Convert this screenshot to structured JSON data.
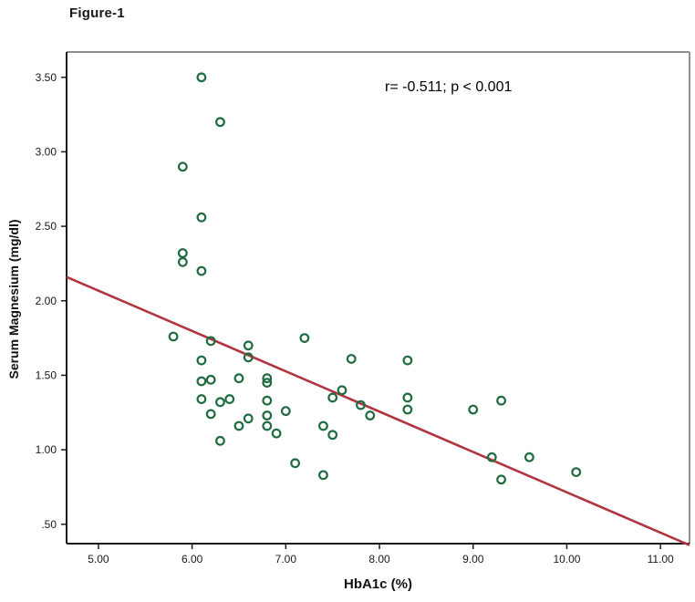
{
  "figure_label": "Figure-1",
  "annotation_text": "r= -0.511; p < 0.001",
  "chart_data": {
    "type": "scatter",
    "title": "Figure-1",
    "xlabel": "HbA1c (%)",
    "ylabel": "Serum Magnesium (mg/dl)",
    "xlim": [
      4.66,
      11.31
    ],
    "ylim": [
      0.37,
      3.67
    ],
    "grid": false,
    "x_ticks": [
      {
        "value": 5,
        "label": "5.00"
      },
      {
        "value": 6,
        "label": "6.00"
      },
      {
        "value": 7,
        "label": "7.00"
      },
      {
        "value": 8,
        "label": "8.00"
      },
      {
        "value": 9,
        "label": "9.00"
      },
      {
        "value": 10,
        "label": "10.00"
      },
      {
        "value": 11,
        "label": "11.00"
      }
    ],
    "y_ticks": [
      {
        "value": 3.5,
        "label": "3.50"
      },
      {
        "value": 3.0,
        "label": "3.00"
      },
      {
        "value": 2.5,
        "label": "2.50"
      },
      {
        "value": 2.0,
        "label": "2.00"
      },
      {
        "value": 1.5,
        "label": "1.50"
      },
      {
        "value": 1.0,
        "label": "1.00"
      },
      {
        "value": 0.5,
        "label": ".50"
      }
    ],
    "points": [
      [
        6.1,
        3.5
      ],
      [
        6.3,
        3.2
      ],
      [
        5.9,
        2.9
      ],
      [
        6.1,
        2.56
      ],
      [
        5.9,
        2.32
      ],
      [
        5.9,
        2.26
      ],
      [
        6.1,
        2.2
      ],
      [
        5.8,
        1.76
      ],
      [
        6.2,
        1.73
      ],
      [
        6.6,
        1.7
      ],
      [
        6.6,
        1.62
      ],
      [
        6.1,
        1.6
      ],
      [
        7.2,
        1.75
      ],
      [
        6.1,
        1.46
      ],
      [
        6.2,
        1.47
      ],
      [
        6.5,
        1.48
      ],
      [
        6.8,
        1.48
      ],
      [
        6.8,
        1.45
      ],
      [
        7.7,
        1.61
      ],
      [
        8.3,
        1.6
      ],
      [
        6.1,
        1.34
      ],
      [
        6.3,
        1.32
      ],
      [
        6.4,
        1.34
      ],
      [
        6.2,
        1.24
      ],
      [
        6.5,
        1.16
      ],
      [
        6.6,
        1.21
      ],
      [
        6.8,
        1.33
      ],
      [
        7.0,
        1.26
      ],
      [
        6.8,
        1.23
      ],
      [
        6.8,
        1.16
      ],
      [
        6.9,
        1.11
      ],
      [
        7.4,
        1.16
      ],
      [
        7.5,
        1.1
      ],
      [
        7.5,
        1.35
      ],
      [
        7.6,
        1.4
      ],
      [
        7.8,
        1.3
      ],
      [
        7.9,
        1.23
      ],
      [
        8.3,
        1.35
      ],
      [
        8.3,
        1.27
      ],
      [
        6.3,
        1.06
      ],
      [
        7.1,
        0.91
      ],
      [
        7.4,
        0.83
      ],
      [
        9.0,
        1.27
      ],
      [
        9.3,
        1.33
      ],
      [
        9.2,
        0.95
      ],
      [
        9.6,
        0.95
      ],
      [
        9.3,
        0.8
      ],
      [
        10.1,
        0.85
      ]
    ],
    "regression_line": {
      "x1": 4.66,
      "y1": 2.16,
      "x2": 11.31,
      "y2": 0.36
    },
    "stats": {
      "r": -0.511,
      "p": "< 0.001"
    },
    "colors": {
      "point_stroke": "#1f6b40",
      "line": "#b03540",
      "axis_dark": "#1a1a1a",
      "axis_gray": "#8f8f8f",
      "text": "#000000"
    }
  }
}
